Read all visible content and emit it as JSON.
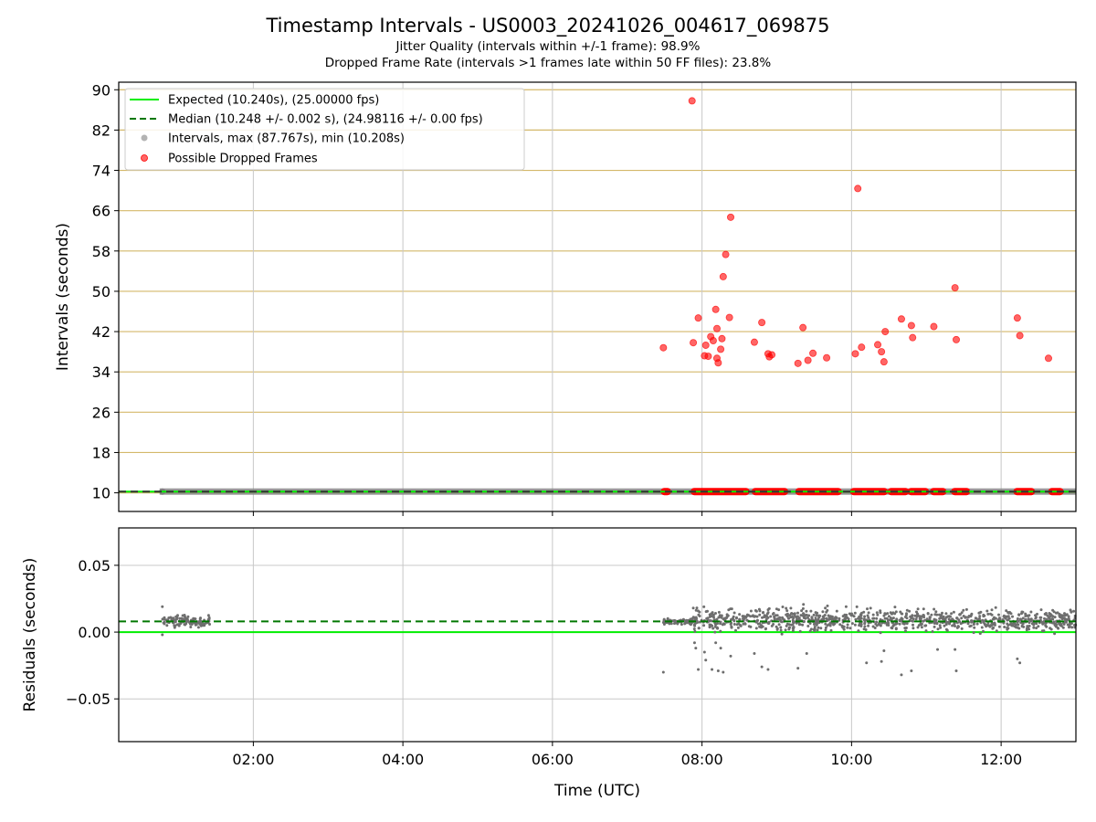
{
  "header": {
    "title": "Timestamp Intervals - US0003_20241026_004617_069875",
    "subtitle_1": "Jitter Quality (intervals within +/-1 frame): 98.9%",
    "subtitle_2": "Dropped Frame Rate (intervals >1 frames late within 50 FF files): 23.8%"
  },
  "colors": {
    "expected": "#00ee00",
    "median": "#007700",
    "intervals": "#808080",
    "dropped": "#ff0000",
    "hgrid_top": "#d4b86a",
    "grid": "#c8c8c8"
  },
  "chart_data": [
    {
      "type": "scatter",
      "ylabel": "Intervals (seconds)",
      "xlabel": "",
      "ylim": [
        6.3,
        91.5
      ],
      "xlim": [
        "00:12",
        "13:00"
      ],
      "y_ticks": [
        10,
        18,
        26,
        34,
        42,
        50,
        58,
        66,
        74,
        82,
        90
      ],
      "y_tick_labels": [
        "10",
        "18",
        "26",
        "34",
        "42",
        "50",
        "58",
        "66",
        "74",
        "82",
        "90"
      ],
      "x_ticks": [
        "02:00",
        "04:00",
        "06:00",
        "08:00",
        "10:00",
        "12:00"
      ],
      "grid": "on",
      "legend_position": "upper-left",
      "legend": [
        "Expected (10.240s), (25.00000 fps)",
        "Median (10.248 +/- 0.002 s), (24.98116 +/- 0.00 fps)",
        "Intervals, max (87.767s), min (10.208s)",
        "Possible Dropped Frames"
      ],
      "expected_line": 10.24,
      "median_line": 10.248,
      "intervals_band": {
        "from": "00:47",
        "to": "13:00",
        "value": 10.248
      },
      "dropped_at_baseline_ranges": [
        [
          "07:29",
          "07:33"
        ],
        [
          "07:53",
          "08:36"
        ],
        [
          "08:42",
          "09:07"
        ],
        [
          "09:17",
          "09:50"
        ],
        [
          "10:01",
          "10:27"
        ],
        [
          "10:31",
          "10:44"
        ],
        [
          "10:47",
          "11:00"
        ],
        [
          "11:05",
          "11:14"
        ],
        [
          "11:22",
          "11:33"
        ],
        [
          "12:12",
          "12:25"
        ],
        [
          "12:40",
          "12:48"
        ]
      ],
      "dropped_frames": [
        {
          "x": "07:29",
          "y": 38.8
        },
        {
          "x": "07:52",
          "y": 87.8
        },
        {
          "x": "07:53",
          "y": 39.8
        },
        {
          "x": "07:57",
          "y": 44.7
        },
        {
          "x": "08:02",
          "y": 37.2
        },
        {
          "x": "08:03",
          "y": 39.3
        },
        {
          "x": "08:05",
          "y": 37.1
        },
        {
          "x": "08:07",
          "y": 41.0
        },
        {
          "x": "08:09",
          "y": 40.2
        },
        {
          "x": "08:11",
          "y": 46.4
        },
        {
          "x": "08:12",
          "y": 42.6
        },
        {
          "x": "08:12",
          "y": 36.7
        },
        {
          "x": "08:13",
          "y": 35.8
        },
        {
          "x": "08:15",
          "y": 38.5
        },
        {
          "x": "08:16",
          "y": 40.6
        },
        {
          "x": "08:17",
          "y": 52.9
        },
        {
          "x": "08:19",
          "y": 57.3
        },
        {
          "x": "08:22",
          "y": 44.8
        },
        {
          "x": "08:23",
          "y": 64.7
        },
        {
          "x": "08:42",
          "y": 39.9
        },
        {
          "x": "08:48",
          "y": 43.8
        },
        {
          "x": "08:53",
          "y": 37.6
        },
        {
          "x": "08:54",
          "y": 37.0
        },
        {
          "x": "08:56",
          "y": 37.4
        },
        {
          "x": "09:17",
          "y": 35.7
        },
        {
          "x": "09:21",
          "y": 42.8
        },
        {
          "x": "09:25",
          "y": 36.3
        },
        {
          "x": "09:29",
          "y": 37.7
        },
        {
          "x": "09:40",
          "y": 36.8
        },
        {
          "x": "10:03",
          "y": 37.6
        },
        {
          "x": "10:05",
          "y": 70.4
        },
        {
          "x": "10:08",
          "y": 38.9
        },
        {
          "x": "10:21",
          "y": 39.4
        },
        {
          "x": "10:24",
          "y": 38.0
        },
        {
          "x": "10:26",
          "y": 36.0
        },
        {
          "x": "10:27",
          "y": 42.0
        },
        {
          "x": "10:40",
          "y": 44.5
        },
        {
          "x": "10:48",
          "y": 43.2
        },
        {
          "x": "10:49",
          "y": 40.8
        },
        {
          "x": "11:06",
          "y": 43.0
        },
        {
          "x": "11:23",
          "y": 50.7
        },
        {
          "x": "11:24",
          "y": 40.4
        },
        {
          "x": "12:13",
          "y": 44.7
        },
        {
          "x": "12:15",
          "y": 41.2
        },
        {
          "x": "12:38",
          "y": 36.7
        }
      ]
    },
    {
      "type": "scatter",
      "ylabel": "Residuals (seconds)",
      "xlabel": "Time (UTC)",
      "ylim": [
        -0.082,
        0.078
      ],
      "xlim": [
        "00:12",
        "13:00"
      ],
      "y_ticks": [
        -0.05,
        0.0,
        0.05
      ],
      "y_tick_labels": [
        "−0.05",
        "0.00",
        "0.05"
      ],
      "x_ticks": [
        "02:00",
        "04:00",
        "06:00",
        "08:00",
        "10:00",
        "12:00"
      ],
      "x_tick_labels": [
        "02:00",
        "04:00",
        "06:00",
        "08:00",
        "10:00",
        "12:00"
      ],
      "grid": "on",
      "expected_line": 0.0,
      "median_line": 0.008,
      "residual_segments": [
        {
          "from": "00:47",
          "to": "01:25",
          "center": 0.008,
          "spread": 0.002
        },
        {
          "from": "07:29",
          "to": "07:53",
          "center": 0.008,
          "spread": 0.001
        },
        {
          "from": "07:53",
          "to": "13:00",
          "center": 0.009,
          "spread": 0.004
        }
      ],
      "residual_outliers": [
        {
          "x": "00:47",
          "y": 0.019
        },
        {
          "x": "00:47",
          "y": -0.002
        },
        {
          "x": "07:29",
          "y": -0.03
        },
        {
          "x": "07:53",
          "y": 0.018
        },
        {
          "x": "07:54",
          "y": -0.008
        },
        {
          "x": "07:55",
          "y": -0.012
        },
        {
          "x": "07:57",
          "y": -0.028
        },
        {
          "x": "08:02",
          "y": -0.015
        },
        {
          "x": "08:03",
          "y": -0.021
        },
        {
          "x": "08:08",
          "y": -0.028
        },
        {
          "x": "08:11",
          "y": -0.008
        },
        {
          "x": "08:13",
          "y": -0.029
        },
        {
          "x": "08:15",
          "y": -0.012
        },
        {
          "x": "08:17",
          "y": -0.03
        },
        {
          "x": "08:23",
          "y": -0.018
        },
        {
          "x": "08:42",
          "y": -0.016
        },
        {
          "x": "08:48",
          "y": -0.026
        },
        {
          "x": "08:53",
          "y": -0.028
        },
        {
          "x": "09:17",
          "y": -0.027
        },
        {
          "x": "09:24",
          "y": -0.016
        },
        {
          "x": "10:12",
          "y": -0.023
        },
        {
          "x": "10:24",
          "y": -0.022
        },
        {
          "x": "10:26",
          "y": -0.014
        },
        {
          "x": "10:40",
          "y": -0.032
        },
        {
          "x": "10:48",
          "y": -0.029
        },
        {
          "x": "11:09",
          "y": -0.013
        },
        {
          "x": "11:23",
          "y": -0.013
        },
        {
          "x": "11:24",
          "y": -0.029
        },
        {
          "x": "12:15",
          "y": -0.023
        },
        {
          "x": "12:13",
          "y": -0.02
        }
      ]
    }
  ]
}
